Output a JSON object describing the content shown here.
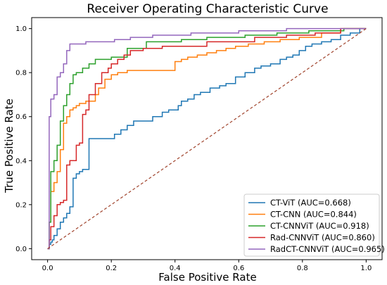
{
  "chart_data": {
    "type": "line",
    "title": "Receiver Operating Characteristic Curve",
    "xlabel": "False Positive Rate",
    "ylabel": "True Positive Rate",
    "xlim": [
      -0.05,
      1.05
    ],
    "ylim": [
      -0.05,
      1.05
    ],
    "xticks": [
      "0.0",
      "0.2",
      "0.4",
      "0.6",
      "0.8",
      "1.0"
    ],
    "yticks": [
      "0.0",
      "0.2",
      "0.4",
      "0.6",
      "0.8",
      "1.0"
    ],
    "grid": false,
    "legend_position": "lower-right",
    "diagonal": {
      "x": [
        0,
        1
      ],
      "y": [
        0,
        1
      ],
      "color": "#a0432c",
      "style": "dashed"
    },
    "series": [
      {
        "name": "CT-ViT (AUC=0.668)",
        "color": "#1f77b4",
        "x": [
          0,
          0.005,
          0.005,
          0.01,
          0.01,
          0.015,
          0.015,
          0.02,
          0.02,
          0.03,
          0.03,
          0.04,
          0.04,
          0.05,
          0.05,
          0.06,
          0.06,
          0.07,
          0.07,
          0.08,
          0.08,
          0.09,
          0.09,
          0.1,
          0.1,
          0.11,
          0.11,
          0.13,
          0.13,
          0.21,
          0.21,
          0.23,
          0.23,
          0.25,
          0.25,
          0.27,
          0.27,
          0.33,
          0.33,
          0.36,
          0.36,
          0.38,
          0.38,
          0.41,
          0.41,
          0.42,
          0.42,
          0.44,
          0.44,
          0.46,
          0.46,
          0.48,
          0.48,
          0.51,
          0.51,
          0.54,
          0.54,
          0.56,
          0.56,
          0.59,
          0.59,
          0.62,
          0.62,
          0.65,
          0.65,
          0.67,
          0.67,
          0.7,
          0.7,
          0.73,
          0.73,
          0.75,
          0.75,
          0.77,
          0.77,
          0.79,
          0.79,
          0.81,
          0.81,
          0.83,
          0.83,
          0.86,
          0.86,
          0.89,
          0.89,
          0.92,
          0.92,
          0.95,
          0.95,
          0.98,
          0.98,
          1.0
        ],
        "y": [
          0,
          0,
          0.02,
          0.02,
          0.03,
          0.03,
          0.04,
          0.04,
          0.06,
          0.06,
          0.09,
          0.09,
          0.12,
          0.12,
          0.14,
          0.14,
          0.16,
          0.16,
          0.19,
          0.19,
          0.32,
          0.32,
          0.34,
          0.34,
          0.35,
          0.35,
          0.36,
          0.36,
          0.5,
          0.5,
          0.52,
          0.52,
          0.54,
          0.54,
          0.56,
          0.56,
          0.58,
          0.58,
          0.6,
          0.6,
          0.62,
          0.62,
          0.63,
          0.63,
          0.65,
          0.65,
          0.67,
          0.67,
          0.68,
          0.68,
          0.7,
          0.7,
          0.71,
          0.71,
          0.73,
          0.73,
          0.74,
          0.74,
          0.75,
          0.75,
          0.78,
          0.78,
          0.8,
          0.8,
          0.82,
          0.82,
          0.83,
          0.83,
          0.84,
          0.84,
          0.86,
          0.86,
          0.87,
          0.87,
          0.88,
          0.88,
          0.9,
          0.9,
          0.92,
          0.92,
          0.93,
          0.93,
          0.94,
          0.94,
          0.95,
          0.95,
          0.97,
          0.97,
          0.98,
          0.98,
          1.0,
          1.0
        ]
      },
      {
        "name": "CT-CNN (AUC=0.844)",
        "color": "#ff7f0e",
        "x": [
          0,
          0.005,
          0.005,
          0.01,
          0.01,
          0.02,
          0.02,
          0.03,
          0.03,
          0.04,
          0.04,
          0.05,
          0.05,
          0.06,
          0.06,
          0.07,
          0.07,
          0.08,
          0.08,
          0.09,
          0.09,
          0.1,
          0.1,
          0.12,
          0.12,
          0.15,
          0.15,
          0.16,
          0.16,
          0.18,
          0.18,
          0.2,
          0.2,
          0.22,
          0.22,
          0.25,
          0.25,
          0.4,
          0.4,
          0.42,
          0.42,
          0.44,
          0.44,
          0.47,
          0.47,
          0.5,
          0.5,
          0.53,
          0.53,
          0.56,
          0.56,
          0.59,
          0.59,
          0.63,
          0.63,
          0.68,
          0.68,
          0.73,
          0.73,
          0.79,
          0.79,
          0.86,
          0.86,
          0.92,
          0.92,
          1.0
        ],
        "y": [
          0,
          0,
          0.12,
          0.12,
          0.26,
          0.26,
          0.3,
          0.3,
          0.35,
          0.35,
          0.45,
          0.45,
          0.57,
          0.57,
          0.6,
          0.6,
          0.63,
          0.63,
          0.64,
          0.64,
          0.65,
          0.65,
          0.66,
          0.66,
          0.67,
          0.67,
          0.7,
          0.7,
          0.73,
          0.73,
          0.77,
          0.77,
          0.79,
          0.79,
          0.8,
          0.8,
          0.81,
          0.81,
          0.85,
          0.85,
          0.86,
          0.86,
          0.87,
          0.87,
          0.88,
          0.88,
          0.89,
          0.89,
          0.9,
          0.9,
          0.91,
          0.91,
          0.92,
          0.92,
          0.93,
          0.93,
          0.94,
          0.94,
          0.95,
          0.95,
          0.96,
          0.96,
          0.98,
          0.98,
          1.0,
          1.0
        ]
      },
      {
        "name": "CT-CNNViT (AUC=0.918)",
        "color": "#2ca02c",
        "x": [
          0,
          0.005,
          0.005,
          0.01,
          0.01,
          0.02,
          0.02,
          0.03,
          0.03,
          0.04,
          0.04,
          0.05,
          0.05,
          0.06,
          0.06,
          0.07,
          0.07,
          0.08,
          0.08,
          0.09,
          0.09,
          0.11,
          0.11,
          0.13,
          0.13,
          0.15,
          0.15,
          0.2,
          0.2,
          0.25,
          0.25,
          0.31,
          0.31,
          0.42,
          0.42,
          0.5,
          0.5,
          0.62,
          0.62,
          0.72,
          0.72,
          0.82,
          0.82,
          0.93,
          0.93,
          1.0
        ],
        "y": [
          0,
          0,
          0.12,
          0.12,
          0.35,
          0.35,
          0.4,
          0.4,
          0.47,
          0.47,
          0.58,
          0.58,
          0.65,
          0.65,
          0.7,
          0.7,
          0.75,
          0.75,
          0.79,
          0.79,
          0.8,
          0.8,
          0.82,
          0.82,
          0.84,
          0.84,
          0.86,
          0.86,
          0.87,
          0.87,
          0.91,
          0.91,
          0.94,
          0.94,
          0.95,
          0.95,
          0.96,
          0.96,
          0.97,
          0.97,
          0.98,
          0.98,
          0.99,
          0.99,
          1.0,
          1.0
        ]
      },
      {
        "name": "Rad-CNNViT (AUC=0.860)",
        "color": "#d62728",
        "x": [
          0,
          0.005,
          0.005,
          0.01,
          0.01,
          0.02,
          0.02,
          0.03,
          0.03,
          0.04,
          0.04,
          0.05,
          0.05,
          0.06,
          0.06,
          0.07,
          0.07,
          0.09,
          0.09,
          0.1,
          0.1,
          0.11,
          0.11,
          0.12,
          0.12,
          0.13,
          0.13,
          0.15,
          0.15,
          0.17,
          0.17,
          0.19,
          0.19,
          0.2,
          0.2,
          0.22,
          0.22,
          0.24,
          0.24,
          0.26,
          0.26,
          0.3,
          0.3,
          0.36,
          0.36,
          0.5,
          0.5,
          0.65,
          0.65,
          0.75,
          0.75,
          0.84,
          0.84,
          0.92,
          0.92,
          1.0
        ],
        "y": [
          0,
          0,
          0.04,
          0.04,
          0.1,
          0.1,
          0.15,
          0.15,
          0.2,
          0.2,
          0.21,
          0.21,
          0.22,
          0.22,
          0.38,
          0.38,
          0.4,
          0.4,
          0.47,
          0.47,
          0.48,
          0.48,
          0.61,
          0.61,
          0.63,
          0.63,
          0.7,
          0.7,
          0.75,
          0.75,
          0.8,
          0.8,
          0.82,
          0.82,
          0.84,
          0.84,
          0.86,
          0.86,
          0.88,
          0.88,
          0.9,
          0.9,
          0.91,
          0.91,
          0.92,
          0.92,
          0.94,
          0.94,
          0.96,
          0.96,
          0.97,
          0.97,
          0.98,
          0.98,
          1.0,
          1.0
        ]
      },
      {
        "name": "RadCT-CNNViT (AUC=0.965)",
        "color": "#9467bd",
        "x": [
          0,
          0.005,
          0.005,
          0.01,
          0.01,
          0.02,
          0.02,
          0.03,
          0.03,
          0.04,
          0.04,
          0.05,
          0.05,
          0.06,
          0.06,
          0.07,
          0.07,
          0.12,
          0.12,
          0.21,
          0.21,
          0.26,
          0.26,
          0.33,
          0.33,
          0.45,
          0.45,
          0.6,
          0.6,
          0.75,
          0.75,
          1.0
        ],
        "y": [
          0,
          0,
          0.6,
          0.6,
          0.68,
          0.68,
          0.7,
          0.7,
          0.78,
          0.78,
          0.8,
          0.8,
          0.84,
          0.84,
          0.9,
          0.9,
          0.93,
          0.93,
          0.94,
          0.94,
          0.95,
          0.95,
          0.96,
          0.96,
          0.97,
          0.97,
          0.98,
          0.98,
          0.99,
          0.99,
          1.0,
          1.0
        ]
      }
    ]
  }
}
